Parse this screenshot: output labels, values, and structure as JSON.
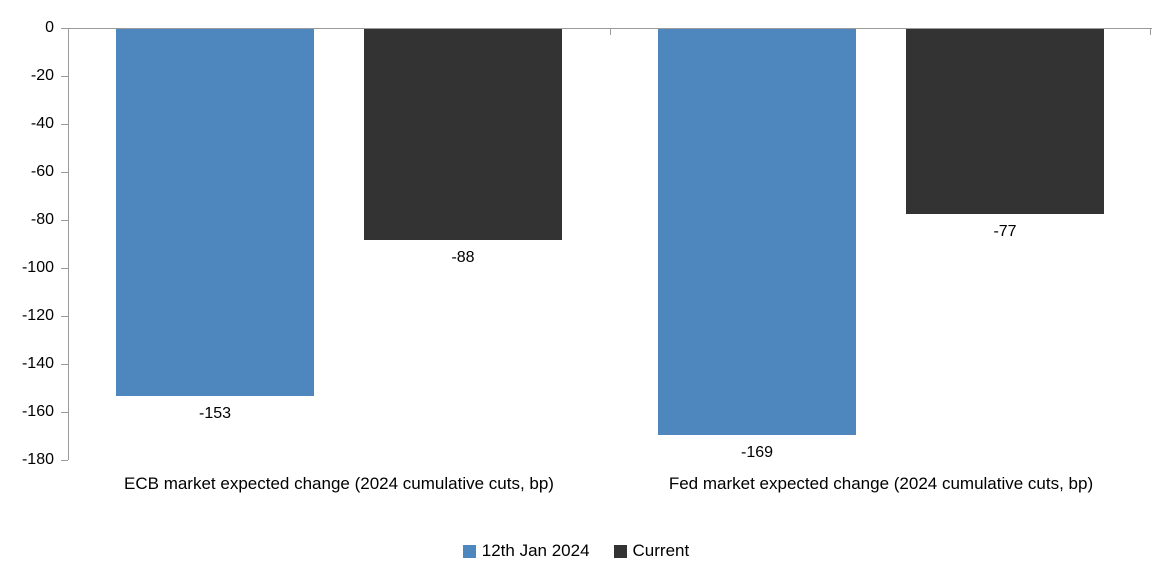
{
  "chart_data": {
    "type": "bar",
    "title": "",
    "categories": [
      "ECB market expected change (2024 cumulative cuts, bp)",
      "Fed market expected change (2024 cumulative cuts, bp)"
    ],
    "series": [
      {
        "name": "12th Jan 2024",
        "color": "#4E87BE",
        "values": [
          -153,
          -169
        ]
      },
      {
        "name": "Current",
        "color": "#333333",
        "values": [
          -88,
          -77
        ]
      }
    ],
    "data_labels": [
      [
        "-153",
        "-169"
      ],
      [
        "-88",
        "-77"
      ]
    ],
    "ylim": [
      -180,
      0
    ],
    "ytick_step": 20,
    "yticks": [
      "0",
      "-20",
      "-40",
      "-60",
      "-80",
      "-100",
      "-120",
      "-140",
      "-160",
      "-180"
    ],
    "grid": false,
    "legend_position": "bottom",
    "axis_color": "#9B9B9B",
    "text_color": "#000000"
  }
}
